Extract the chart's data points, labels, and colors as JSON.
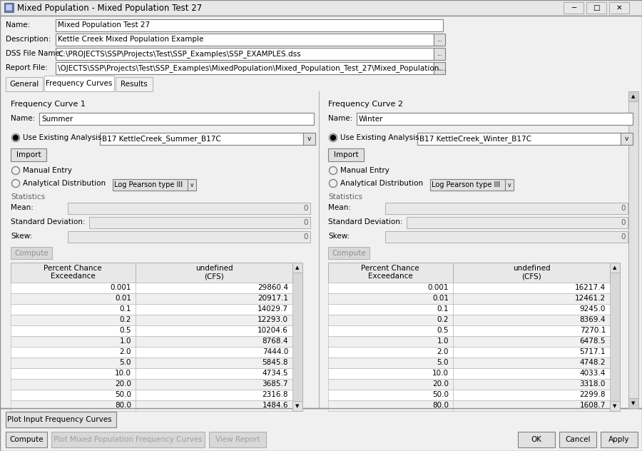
{
  "title": "Mixed Population - Mixed Population Test 27",
  "bg_color": "#f0f0f0",
  "name_val": "Mixed Population Test 27",
  "description_val": "Kettle Creek Mixed Population Example",
  "dss_file_val": "C:\\PROJECTS\\SSP\\Projects\\Test\\SSP_Examples\\SSP_EXAMPLES.dss",
  "report_file_val": "\\OJECTS\\SSP\\Projects\\Test\\SSP_Examples\\MixedPopulation\\Mixed_Population_Test_27\\Mixed_Population...",
  "tabs": [
    "General",
    "Frequency Curves",
    "Results"
  ],
  "active_tab": "Frequency Curves",
  "fc1_name": "Summer",
  "fc1_analysis": "B17 KettleCreek_Summer_B17C",
  "fc2_name": "Winter",
  "fc2_analysis": "B17 KettleCreek_Winter_B17C",
  "dist_label": "Log Pearson type III",
  "table1_pce": [
    "0.001",
    "0.01",
    "0.1",
    "0.2",
    "0.5",
    "1.0",
    "2.0",
    "5.0",
    "10.0",
    "20.0",
    "50.0",
    "80.0"
  ],
  "table1_cfs": [
    "29860.4",
    "20917.1",
    "14029.7",
    "12293.0",
    "10204.6",
    "8768.4",
    "7444.0",
    "5845.8",
    "4734.5",
    "3685.7",
    "2316.8",
    "1484.6"
  ],
  "table2_pce": [
    "0.001",
    "0.01",
    "0.1",
    "0.2",
    "0.5",
    "1.0",
    "2.0",
    "5.0",
    "10.0",
    "20.0",
    "50.0",
    "80.0"
  ],
  "table2_cfs": [
    "16217.4",
    "12461.2",
    "9245.0",
    "8369.4",
    "7270.1",
    "6478.5",
    "5717.1",
    "4748.2",
    "4033.4",
    "3318.0",
    "2299.8",
    "1608.7"
  ],
  "window_bg": "#d4d0c8",
  "titlebar_bg": "#e8e8e8",
  "input_bg": "#ffffff",
  "table_header_bg": "#e8e8e8",
  "table_row_alt": "#f0f0f0",
  "table_row_bg": "#ffffff",
  "border_color": "#b0b0b0",
  "dark_border": "#808080",
  "text_color": "#000000",
  "disabled_text": "#a0a0a0",
  "btn_bg": "#e1e1e1",
  "disabled_btn_bg": "#d4d0c8",
  "panel_bg": "#f0f0f0",
  "content_bg": "#f0f0f0"
}
